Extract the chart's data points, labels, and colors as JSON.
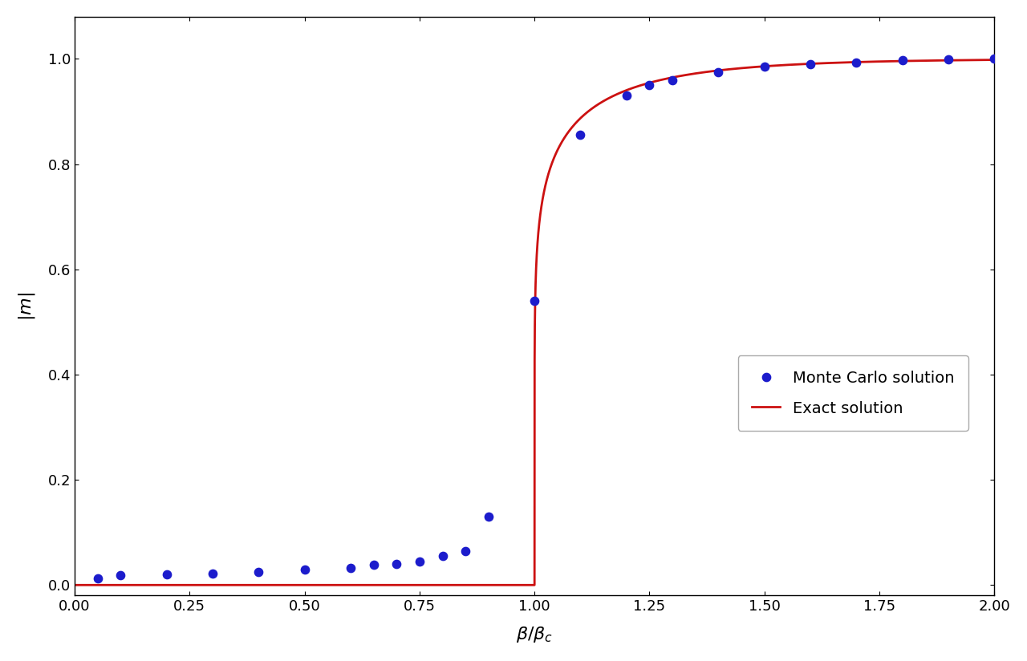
{
  "title": "",
  "xlabel": "$\\beta/\\beta_c$",
  "ylabel": "$|m|$",
  "xlim": [
    0.0,
    2.0
  ],
  "ylim": [
    -0.02,
    1.08
  ],
  "xticks": [
    0.0,
    0.25,
    0.5,
    0.75,
    1.0,
    1.25,
    1.5,
    1.75,
    2.0
  ],
  "yticks": [
    0.0,
    0.2,
    0.4,
    0.6,
    0.8,
    1.0
  ],
  "mc_x": [
    0.05,
    0.1,
    0.2,
    0.3,
    0.4,
    0.5,
    0.6,
    0.65,
    0.7,
    0.75,
    0.8,
    0.85,
    0.9,
    1.0,
    1.1,
    1.2,
    1.25,
    1.3,
    1.4,
    1.5,
    1.6,
    1.7,
    1.8,
    1.9,
    2.0
  ],
  "mc_y": [
    0.012,
    0.018,
    0.02,
    0.022,
    0.025,
    0.03,
    0.033,
    0.038,
    0.04,
    0.045,
    0.055,
    0.065,
    0.13,
    0.54,
    0.855,
    0.93,
    0.95,
    0.96,
    0.975,
    0.985,
    0.99,
    0.993,
    0.997,
    0.999,
    1.0
  ],
  "dot_color": "#1C1CCC",
  "dot_size": 55,
  "line_color": "#CC1111",
  "line_width": 2.0,
  "legend_loc": "center right",
  "legend_fontsize": 14,
  "background_color": "#ffffff",
  "figsize": [
    12.8,
    8.24
  ],
  "dpi": 100
}
